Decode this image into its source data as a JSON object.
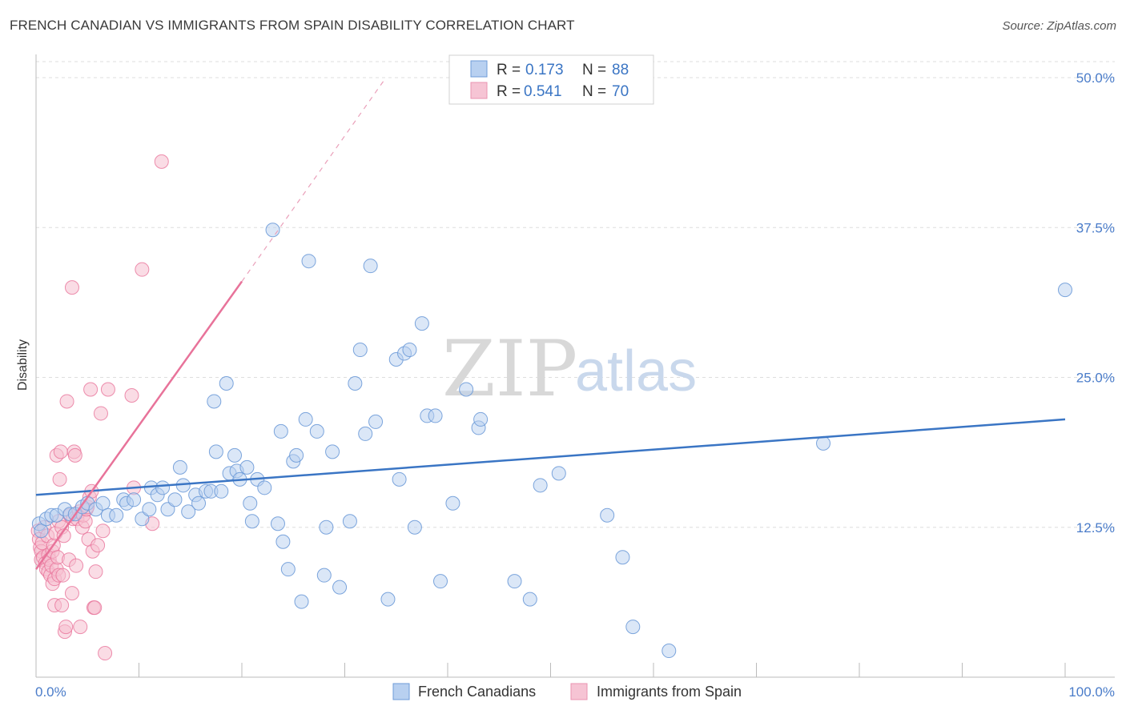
{
  "header": {
    "title": "FRENCH CANADIAN VS IMMIGRANTS FROM SPAIN DISABILITY CORRELATION CHART",
    "source": "Source: ZipAtlas.com"
  },
  "watermark": {
    "zip": "ZIP",
    "atlas": "atlas"
  },
  "legend": {
    "rows": [
      {
        "r_label": "R =",
        "r_value": "0.173",
        "n_label": "N =",
        "n_value": "88"
      },
      {
        "r_label": "R =",
        "r_value": "0.541",
        "n_label": "N =",
        "n_value": "70"
      }
    ]
  },
  "bottom_legend": {
    "series1": "French Canadians",
    "series2": "Immigrants from Spain"
  },
  "chart_data": {
    "type": "scatter",
    "title": "FRENCH CANADIAN VS IMMIGRANTS FROM SPAIN DISABILITY CORRELATION CHART",
    "xlabel": "",
    "ylabel": "Disability",
    "xlim": [
      0,
      100
    ],
    "ylim": [
      0,
      52
    ],
    "x_tick_labels": [
      "0.0%",
      "100.0%"
    ],
    "y_ticks": [
      12.5,
      25.0,
      37.5,
      50.0
    ],
    "y_tick_labels": [
      "12.5%",
      "25.0%",
      "37.5%",
      "50.0%"
    ],
    "colors": {
      "series1": "#3a75c4",
      "series2": "#e8739a",
      "series1_fill": "#b8d0f0",
      "series2_fill": "#f6bfd0"
    },
    "series": [
      {
        "name": "French Canadians",
        "R": 0.173,
        "N": 88,
        "trend": {
          "x": [
            0,
            100
          ],
          "y": [
            15.2,
            21.5
          ]
        },
        "points": [
          [
            0.3,
            12.8
          ],
          [
            0.5,
            12.2
          ],
          [
            1.0,
            13.2
          ],
          [
            1.5,
            13.5
          ],
          [
            2.0,
            13.5
          ],
          [
            2.8,
            14.0
          ],
          [
            3.3,
            13.6
          ],
          [
            3.8,
            13.6
          ],
          [
            4.5,
            14.2
          ],
          [
            5.0,
            14.5
          ],
          [
            5.8,
            14.0
          ],
          [
            6.5,
            14.5
          ],
          [
            7.0,
            13.5
          ],
          [
            7.8,
            13.5
          ],
          [
            8.5,
            14.8
          ],
          [
            8.8,
            14.5
          ],
          [
            9.5,
            14.8
          ],
          [
            10.3,
            13.2
          ],
          [
            11.0,
            14.0
          ],
          [
            11.2,
            15.8
          ],
          [
            11.8,
            15.2
          ],
          [
            12.3,
            15.8
          ],
          [
            12.8,
            14.0
          ],
          [
            13.5,
            14.8
          ],
          [
            14.0,
            17.5
          ],
          [
            14.3,
            16.0
          ],
          [
            14.8,
            13.8
          ],
          [
            15.5,
            15.2
          ],
          [
            15.8,
            14.5
          ],
          [
            16.5,
            15.5
          ],
          [
            17.0,
            15.5
          ],
          [
            17.3,
            23.0
          ],
          [
            17.5,
            18.8
          ],
          [
            18.0,
            15.5
          ],
          [
            18.5,
            24.5
          ],
          [
            18.8,
            17.0
          ],
          [
            19.3,
            18.5
          ],
          [
            19.5,
            17.2
          ],
          [
            19.8,
            16.5
          ],
          [
            20.5,
            17.5
          ],
          [
            20.8,
            14.5
          ],
          [
            21.0,
            13.0
          ],
          [
            21.5,
            16.5
          ],
          [
            22.2,
            15.8
          ],
          [
            23.0,
            37.3
          ],
          [
            23.5,
            12.8
          ],
          [
            23.8,
            20.5
          ],
          [
            24.0,
            11.3
          ],
          [
            24.5,
            9.0
          ],
          [
            25.0,
            18.0
          ],
          [
            25.3,
            18.5
          ],
          [
            25.8,
            6.3
          ],
          [
            26.2,
            21.5
          ],
          [
            26.5,
            34.7
          ],
          [
            27.3,
            20.5
          ],
          [
            28.0,
            8.5
          ],
          [
            28.2,
            12.5
          ],
          [
            28.8,
            18.8
          ],
          [
            29.5,
            7.5
          ],
          [
            30.5,
            13.0
          ],
          [
            31.0,
            24.5
          ],
          [
            31.5,
            27.3
          ],
          [
            32.0,
            20.3
          ],
          [
            32.5,
            34.3
          ],
          [
            33.0,
            21.3
          ],
          [
            34.2,
            6.5
          ],
          [
            35.0,
            26.5
          ],
          [
            35.3,
            16.5
          ],
          [
            35.8,
            27.0
          ],
          [
            36.3,
            27.3
          ],
          [
            36.8,
            12.5
          ],
          [
            37.5,
            29.5
          ],
          [
            38.0,
            21.8
          ],
          [
            38.8,
            21.8
          ],
          [
            39.3,
            8.0
          ],
          [
            40.5,
            14.5
          ],
          [
            41.8,
            24.0
          ],
          [
            43.0,
            20.8
          ],
          [
            43.2,
            21.5
          ],
          [
            46.5,
            8.0
          ],
          [
            48.0,
            6.5
          ],
          [
            49.0,
            16.0
          ],
          [
            50.8,
            17.0
          ],
          [
            55.5,
            13.5
          ],
          [
            57.0,
            10.0
          ],
          [
            58.0,
            4.2
          ],
          [
            61.5,
            2.2
          ],
          [
            76.5,
            19.5
          ],
          [
            100.0,
            32.3
          ]
        ]
      },
      {
        "name": "Immigrants from Spain",
        "R": 0.541,
        "N": 70,
        "trend": {
          "x": [
            0,
            20
          ],
          "y": [
            9.0,
            33.0
          ]
        },
        "trend_dashed": {
          "x": [
            20,
            34
          ],
          "y": [
            33.0,
            50.0
          ]
        },
        "points": [
          [
            0.2,
            12.2
          ],
          [
            0.3,
            11.5
          ],
          [
            0.4,
            10.8
          ],
          [
            0.5,
            10.5
          ],
          [
            0.5,
            9.8
          ],
          [
            0.6,
            11.2
          ],
          [
            0.7,
            10.0
          ],
          [
            0.8,
            12.5
          ],
          [
            0.9,
            9.5
          ],
          [
            1.0,
            9.0
          ],
          [
            1.1,
            11.8
          ],
          [
            1.2,
            10.2
          ],
          [
            1.2,
            8.8
          ],
          [
            1.3,
            9.8
          ],
          [
            1.4,
            8.5
          ],
          [
            1.5,
            9.3
          ],
          [
            1.6,
            10.5
          ],
          [
            1.6,
            7.8
          ],
          [
            1.7,
            11.0
          ],
          [
            1.8,
            8.2
          ],
          [
            1.8,
            6.0
          ],
          [
            1.9,
            12.0
          ],
          [
            2.0,
            9.0
          ],
          [
            2.0,
            18.5
          ],
          [
            2.1,
            10.0
          ],
          [
            2.2,
            8.5
          ],
          [
            2.2,
            13.0
          ],
          [
            2.3,
            16.5
          ],
          [
            2.4,
            18.8
          ],
          [
            2.5,
            6.0
          ],
          [
            2.5,
            12.5
          ],
          [
            2.6,
            8.5
          ],
          [
            2.7,
            11.8
          ],
          [
            2.8,
            3.8
          ],
          [
            2.9,
            4.2
          ],
          [
            3.0,
            23.0
          ],
          [
            3.2,
            9.8
          ],
          [
            3.3,
            13.5
          ],
          [
            3.5,
            7.0
          ],
          [
            3.5,
            32.5
          ],
          [
            3.6,
            13.2
          ],
          [
            3.7,
            18.8
          ],
          [
            3.8,
            18.5
          ],
          [
            3.9,
            9.3
          ],
          [
            4.0,
            13.2
          ],
          [
            4.2,
            13.8
          ],
          [
            4.3,
            4.2
          ],
          [
            4.5,
            12.5
          ],
          [
            4.6,
            13.5
          ],
          [
            4.8,
            13.0
          ],
          [
            4.9,
            14.0
          ],
          [
            5.0,
            14.2
          ],
          [
            5.1,
            11.5
          ],
          [
            5.2,
            15.0
          ],
          [
            5.3,
            24.0
          ],
          [
            5.4,
            15.5
          ],
          [
            5.5,
            10.5
          ],
          [
            5.6,
            5.8
          ],
          [
            5.7,
            5.8
          ],
          [
            5.8,
            8.8
          ],
          [
            6.0,
            11.0
          ],
          [
            6.3,
            22.0
          ],
          [
            6.5,
            12.2
          ],
          [
            6.7,
            2.0
          ],
          [
            7.0,
            24.0
          ],
          [
            9.3,
            23.5
          ],
          [
            9.5,
            15.8
          ],
          [
            10.3,
            34.0
          ],
          [
            11.3,
            12.8
          ],
          [
            12.2,
            43.0
          ]
        ]
      }
    ]
  }
}
